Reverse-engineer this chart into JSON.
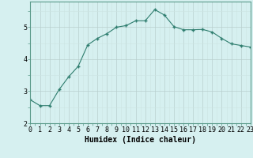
{
  "x": [
    0,
    1,
    2,
    3,
    4,
    5,
    6,
    7,
    8,
    9,
    10,
    11,
    12,
    13,
    14,
    15,
    16,
    17,
    18,
    19,
    20,
    21,
    22,
    23
  ],
  "y": [
    2.73,
    2.55,
    2.55,
    3.05,
    3.45,
    3.78,
    4.45,
    4.65,
    4.8,
    5.0,
    5.05,
    5.2,
    5.2,
    5.55,
    5.38,
    5.02,
    4.92,
    4.92,
    4.93,
    4.85,
    4.65,
    4.48,
    4.43,
    4.38
  ],
  "line_color": "#2e7d6e",
  "marker": "+",
  "marker_size": 3,
  "marker_linewidth": 1.0,
  "line_width": 0.8,
  "bg_color": "#d6f0f0",
  "grid_color_major": "#b8d0ce",
  "grid_color_minor": "#cce4e2",
  "xlabel": "Humidex (Indice chaleur)",
  "xlabel_fontsize": 7,
  "ylabel_ticks": [
    2,
    3,
    4,
    5
  ],
  "xlim": [
    0,
    23
  ],
  "ylim": [
    2.0,
    5.8
  ],
  "xtick_labels": [
    "0",
    "1",
    "2",
    "3",
    "4",
    "5",
    "6",
    "7",
    "8",
    "9",
    "10",
    "11",
    "12",
    "13",
    "14",
    "15",
    "16",
    "17",
    "18",
    "19",
    "20",
    "21",
    "22",
    "23"
  ],
  "tick_fontsize": 6,
  "spine_color": "#5a9a8a"
}
